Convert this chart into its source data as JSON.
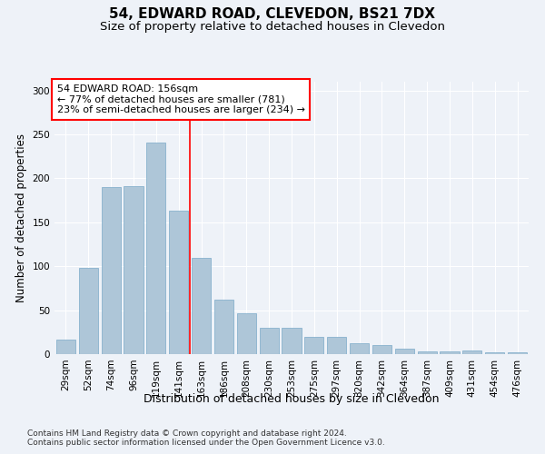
{
  "title": "54, EDWARD ROAD, CLEVEDON, BS21 7DX",
  "subtitle": "Size of property relative to detached houses in Clevedon",
  "xlabel": "Distribution of detached houses by size in Clevedon",
  "ylabel": "Number of detached properties",
  "categories": [
    "29sqm",
    "52sqm",
    "74sqm",
    "96sqm",
    "119sqm",
    "141sqm",
    "163sqm",
    "186sqm",
    "208sqm",
    "230sqm",
    "253sqm",
    "275sqm",
    "297sqm",
    "320sqm",
    "342sqm",
    "364sqm",
    "387sqm",
    "409sqm",
    "431sqm",
    "454sqm",
    "476sqm"
  ],
  "values": [
    17,
    98,
    190,
    191,
    241,
    163,
    110,
    62,
    47,
    30,
    30,
    20,
    20,
    12,
    10,
    6,
    3,
    3,
    4,
    2,
    2
  ],
  "bar_color": "#aec6d8",
  "bar_edge_color": "#7aaac8",
  "vline_x_index": 6,
  "annotation_text_line1": "54 EDWARD ROAD: 156sqm",
  "annotation_text_line2": "← 77% of detached houses are smaller (781)",
  "annotation_text_line3": "23% of semi-detached houses are larger (234) →",
  "annotation_box_color": "white",
  "annotation_box_edge_color": "red",
  "vline_color": "red",
  "ylim": [
    0,
    310
  ],
  "footnote1": "Contains HM Land Registry data © Crown copyright and database right 2024.",
  "footnote2": "Contains public sector information licensed under the Open Government Licence v3.0.",
  "background_color": "#eef2f8",
  "grid_color": "white",
  "title_fontsize": 11,
  "subtitle_fontsize": 9.5,
  "tick_fontsize": 7.5,
  "ylabel_fontsize": 8.5,
  "xlabel_fontsize": 9,
  "annotation_fontsize": 8,
  "footnote_fontsize": 6.5
}
